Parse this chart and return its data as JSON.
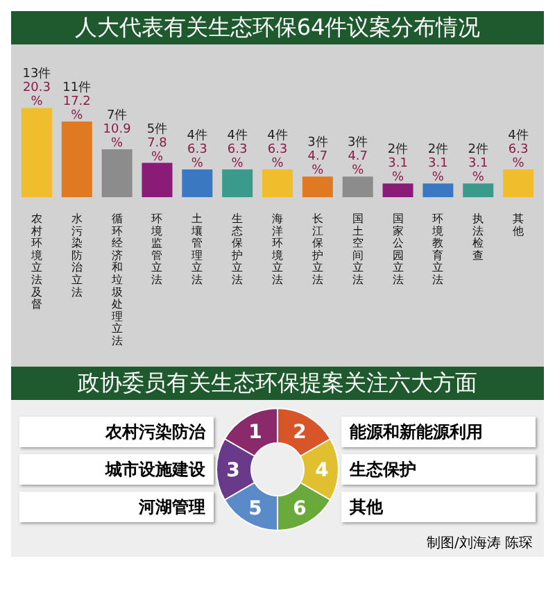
{
  "chart_data": {
    "type": "bar",
    "title": "人大代表有关生态环保64件议案分布情况",
    "subtitle": "政协委员有关生态环保提案关注六大方面",
    "categories": [
      "农村环境立法及督",
      "水污染防治立法",
      "循环经济和垃圾处理立法",
      "环境监管立法",
      "土壤管理立法",
      "生态保护立法",
      "海洋环境立法",
      "长江保护立法",
      "国土空间立法",
      "国家公园立法",
      "环境教育立法",
      "执法检查",
      "其他"
    ],
    "values": [
      20.3,
      17.2,
      10.9,
      7.8,
      6.3,
      6.3,
      6.3,
      4.7,
      4.7,
      3.1,
      3.1,
      3.1,
      6.3
    ],
    "value_labels": [
      "13件\n20.3\n%",
      "11件\n17.2\n%",
      "7件\n10.9\n%",
      "5件\n7.8\n%",
      "4件\n6.3\n%",
      "4件\n6.3\n%",
      "4件\n6.3\n%",
      "3件\n4.7\n%",
      "3件\n4.7\n%",
      "2件\n3.1\n%",
      "2件\n3.1\n%",
      "2件\n3.1\n%",
      "4件\n6.3\n%"
    ],
    "colors": [
      "#f0be2c",
      "#e07a22",
      "#8c8c8c",
      "#8a1c78",
      "#3b78c2",
      "#3a9a8c",
      "#f0be2c",
      "#e07a22",
      "#8c8c8c",
      "#8a1c78",
      "#3b78c2",
      "#3a9a8c",
      "#f0be2c"
    ],
    "annotations": [
      "农村污染防治",
      "能源和新能源利用",
      "城市设施建设",
      "生态保护",
      "河湖管理",
      "其他",
      "1",
      "2",
      "3",
      "4",
      "5",
      "6",
      "制图/刘海涛 陈琛"
    ]
  }
}
